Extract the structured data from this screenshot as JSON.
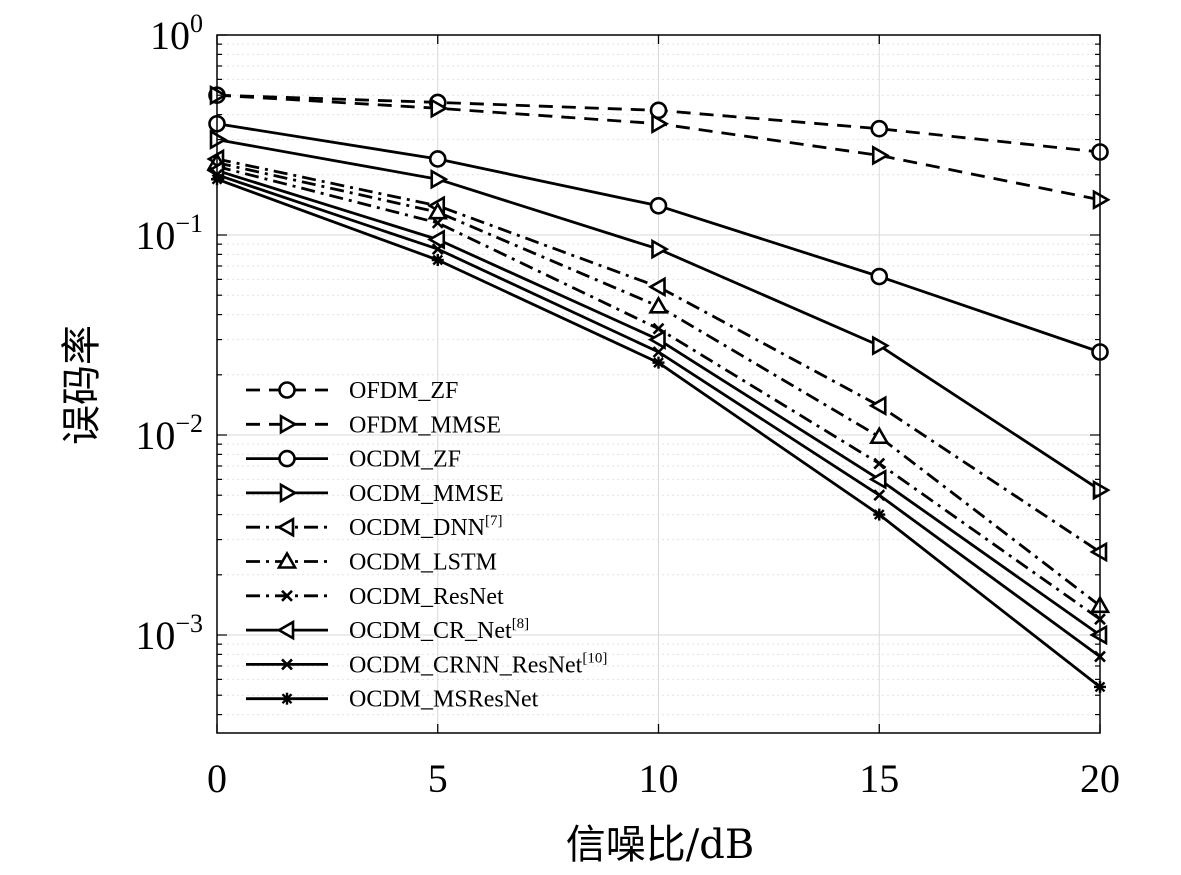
{
  "chart_data": {
    "type": "line",
    "title": "",
    "xlabel": "信噪比/dB",
    "ylabel": "误码率",
    "xlim": [
      0,
      20
    ],
    "ylim": [
      0.0003,
      1
    ],
    "yscale": "log",
    "grid": true,
    "x": [
      0,
      5,
      10,
      15,
      20
    ],
    "x_ticks": [
      "0",
      "5",
      "10",
      "15",
      "20"
    ],
    "y_ticks": [
      {
        "base": "10",
        "exp": "0",
        "value": 1
      },
      {
        "base": "10",
        "exp": "−1",
        "value": 0.1
      },
      {
        "base": "10",
        "exp": "−2",
        "value": 0.01
      },
      {
        "base": "10",
        "exp": "−3",
        "value": 0.001
      }
    ],
    "legend_position": "lower-left",
    "series": [
      {
        "name": "OFDM_ZF",
        "sup": "",
        "values": [
          0.5,
          0.46,
          0.42,
          0.34,
          0.26
        ],
        "dash": "dashed",
        "marker": "circle"
      },
      {
        "name": "OFDM_MMSE",
        "sup": "",
        "values": [
          0.5,
          0.43,
          0.36,
          0.25,
          0.15
        ],
        "dash": "dashed",
        "marker": "triangle-right"
      },
      {
        "name": "OCDM_ZF",
        "sup": "",
        "values": [
          0.36,
          0.24,
          0.14,
          0.062,
          0.026
        ],
        "dash": "solid",
        "marker": "circle"
      },
      {
        "name": "OCDM_MMSE",
        "sup": "",
        "values": [
          0.3,
          0.19,
          0.085,
          0.028,
          0.0053
        ],
        "dash": "solid",
        "marker": "triangle-right"
      },
      {
        "name": "OCDM_DNN",
        "sup": "[7]",
        "values": [
          0.24,
          0.14,
          0.055,
          0.014,
          0.0026
        ],
        "dash": "dashdot",
        "marker": "triangle-left"
      },
      {
        "name": "OCDM_LSTM",
        "sup": "",
        "values": [
          0.23,
          0.13,
          0.044,
          0.0098,
          0.0014
        ],
        "dash": "dashdot",
        "marker": "triangle-up"
      },
      {
        "name": "OCDM_ResNet",
        "sup": "",
        "values": [
          0.22,
          0.115,
          0.034,
          0.0072,
          0.0012
        ],
        "dash": "dashdot",
        "marker": "x"
      },
      {
        "name": "OCDM_CR_Net",
        "sup": "[8]",
        "values": [
          0.21,
          0.095,
          0.03,
          0.006,
          0.001
        ],
        "dash": "solid",
        "marker": "triangle-left"
      },
      {
        "name": "OCDM_CRNN_ResNet",
        "sup": "[10]",
        "values": [
          0.2,
          0.085,
          0.026,
          0.005,
          0.00078
        ],
        "dash": "solid",
        "marker": "x"
      },
      {
        "name": "OCDM_MSResNet",
        "sup": "",
        "values": [
          0.19,
          0.075,
          0.023,
          0.004,
          0.00055
        ],
        "dash": "solid",
        "marker": "asterisk"
      }
    ]
  }
}
